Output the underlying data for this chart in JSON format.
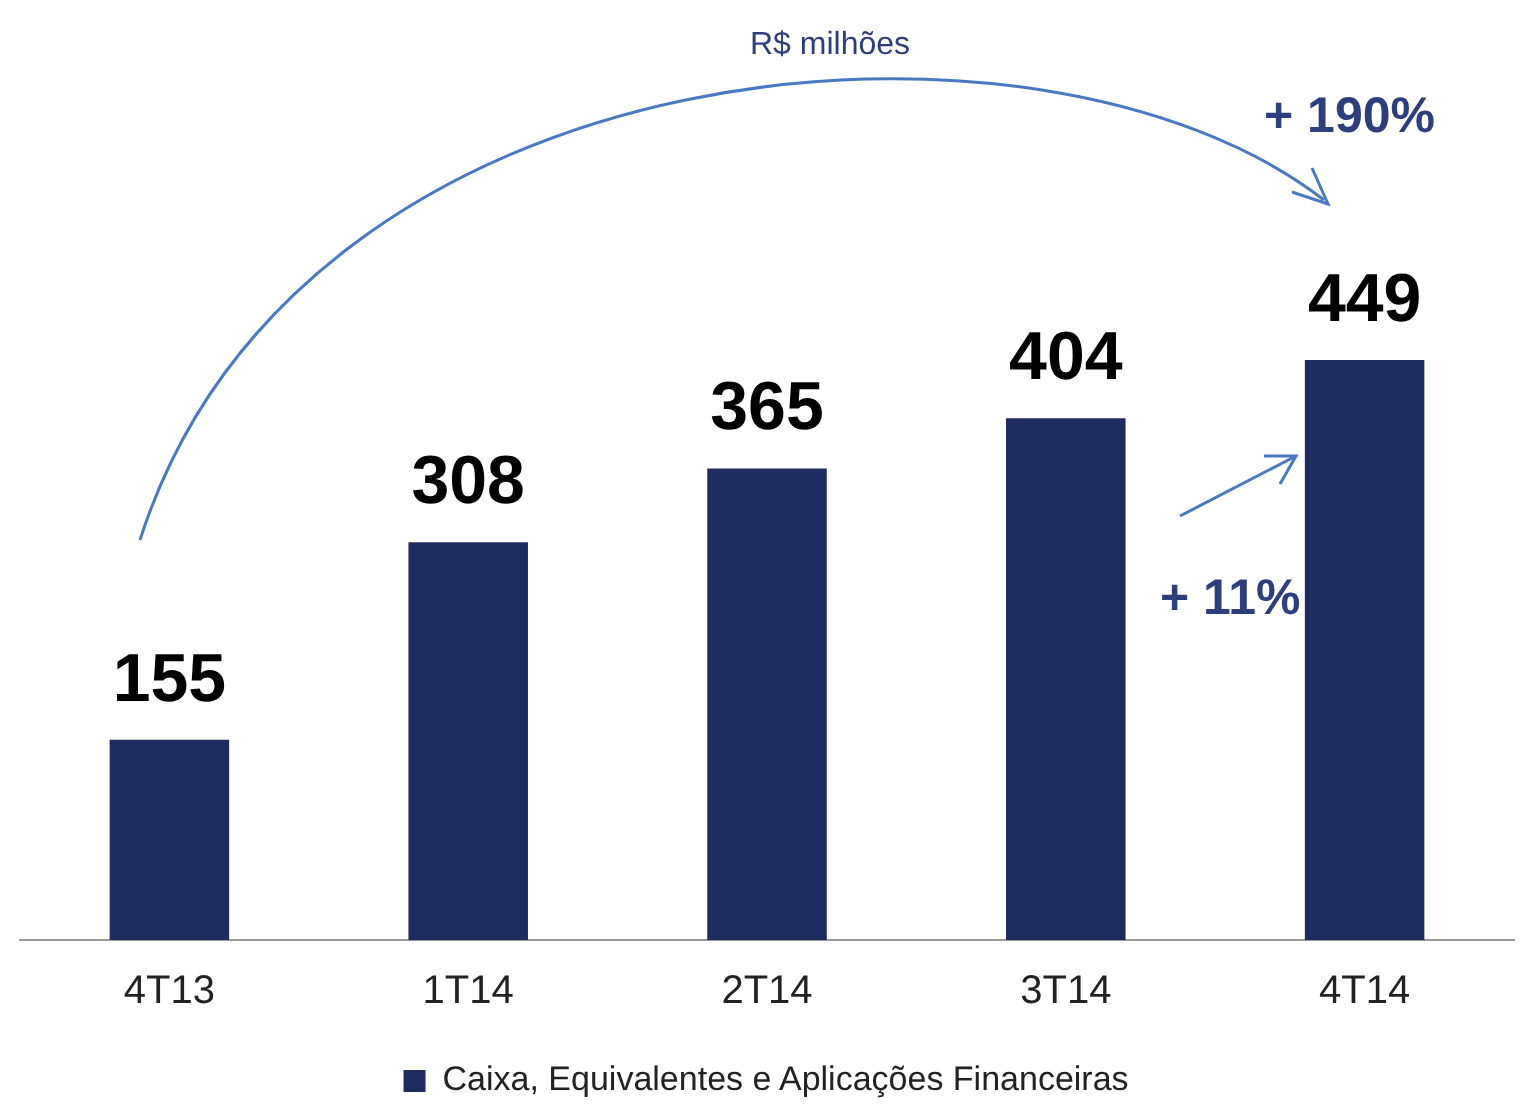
{
  "chart_data": {
    "type": "bar",
    "subtitle": "R$ milhões",
    "categories": [
      "4T13",
      "1T14",
      "2T14",
      "3T14",
      "4T14"
    ],
    "series": [
      {
        "name": "Caixa, Equivalentes e Aplicações Financeiras",
        "color": "#1f2a5e",
        "values": [
          155,
          308,
          365,
          404,
          449
        ]
      }
    ],
    "data_labels": true,
    "legend": "bottom",
    "grid": false,
    "annotations": [
      "+ 190%",
      "+ 11%"
    ]
  }
}
